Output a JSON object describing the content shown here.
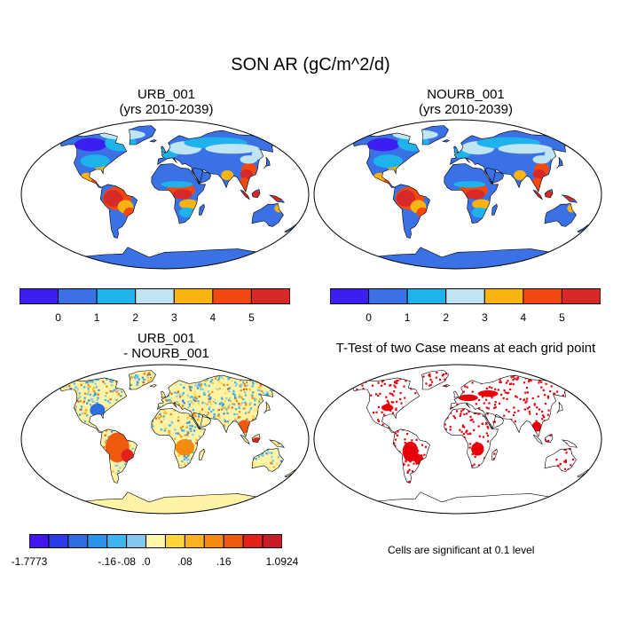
{
  "figure": {
    "title": "SON AR (gC/m^2/d)"
  },
  "panels": [
    {
      "id": "urb",
      "title_line1": "URB_001",
      "title_line2": "(yrs 2010-2039)"
    },
    {
      "id": "nourb",
      "title_line1": "NOURB_001",
      "title_line2": "(yrs 2010-2039)"
    },
    {
      "id": "diff",
      "title_line1": "URB_001",
      "title_line2": "- NOURB_001"
    },
    {
      "id": "ttest",
      "title_line1": "T-Test of two Case means at each grid point",
      "title_line2": ""
    }
  ],
  "colorbar_abs": {
    "colors": [
      "#3b1ff0",
      "#3a72e6",
      "#1fb3ee",
      "#bfe4f2",
      "#fbb40f",
      "#f3490f",
      "#d72a28"
    ],
    "labels": [
      "0",
      "1",
      "2",
      "3",
      "4",
      "5"
    ]
  },
  "colorbar_diff": {
    "colors": [
      "#4216f0",
      "#2a3de8",
      "#2f6ee0",
      "#2a93ea",
      "#3cb5f0",
      "#84c8ee",
      "#fff6a8",
      "#ffd63a",
      "#fbb21e",
      "#f58a0e",
      "#ef5a0f",
      "#e3231b",
      "#c81d26"
    ],
    "labels": [
      "-1.7773",
      "-.16",
      "-.08",
      ".0",
      ".08",
      ".16",
      "1.0924"
    ]
  },
  "significance_note": "Cells are significant at 0.1 level",
  "map_colors": {
    "ocean": "#ffffff",
    "land_abs_base": "#3a72e6",
    "land_diff_base": "#fff3a6",
    "signif": "#e8000b",
    "coast": "#000000"
  }
}
